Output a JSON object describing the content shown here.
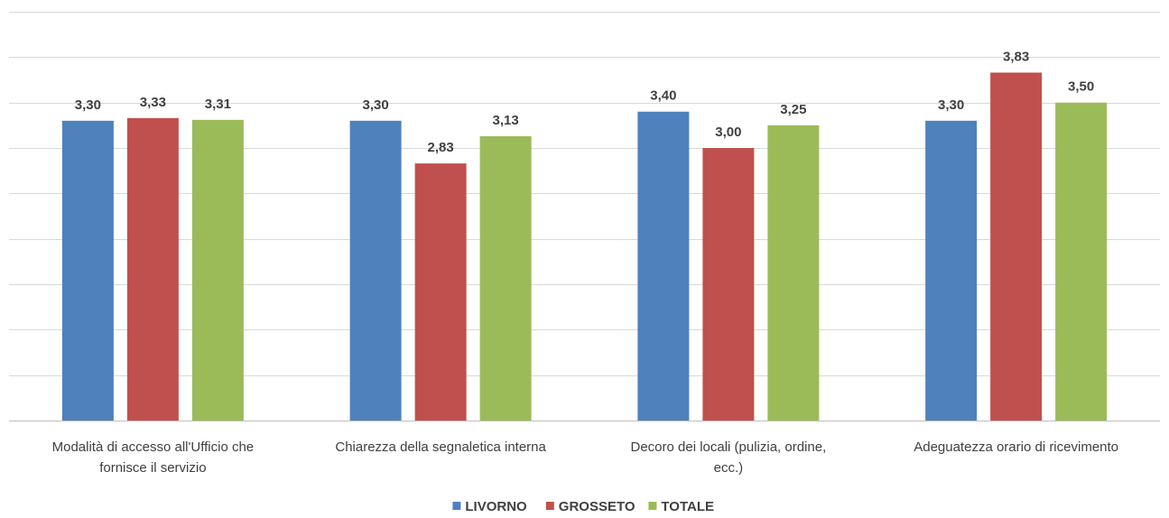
{
  "chart_data": {
    "type": "bar",
    "categories": [
      [
        "Modalità di accesso all'Ufficio che",
        "fornisce il servizio"
      ],
      [
        "Chiarezza della segnaletica interna"
      ],
      [
        "Decoro dei locali (pulizia, ordine,",
        "ecc.)"
      ],
      [
        "Adeguatezza orario di ricevimento"
      ]
    ],
    "series": [
      {
        "name": "LIVORNO",
        "color": "#4F81BD",
        "values": [
          3.3,
          3.3,
          3.4,
          3.3
        ],
        "labels": [
          "3,30",
          "3,30",
          "3,40",
          "3,30"
        ]
      },
      {
        "name": "GROSSETO",
        "color": "#C0504D",
        "values": [
          3.33,
          2.83,
          3.0,
          3.83
        ],
        "labels": [
          "3,33",
          "2,83",
          "3,00",
          "3,83"
        ]
      },
      {
        "name": "TOTALE",
        "color": "#9BBB59",
        "values": [
          3.31,
          3.13,
          3.25,
          3.5
        ],
        "labels": [
          "3,31",
          "3,13",
          "3,25",
          "3,50"
        ]
      }
    ],
    "ylim": [
      0,
      4.5
    ],
    "grid": true,
    "legend": "bottom-center"
  }
}
